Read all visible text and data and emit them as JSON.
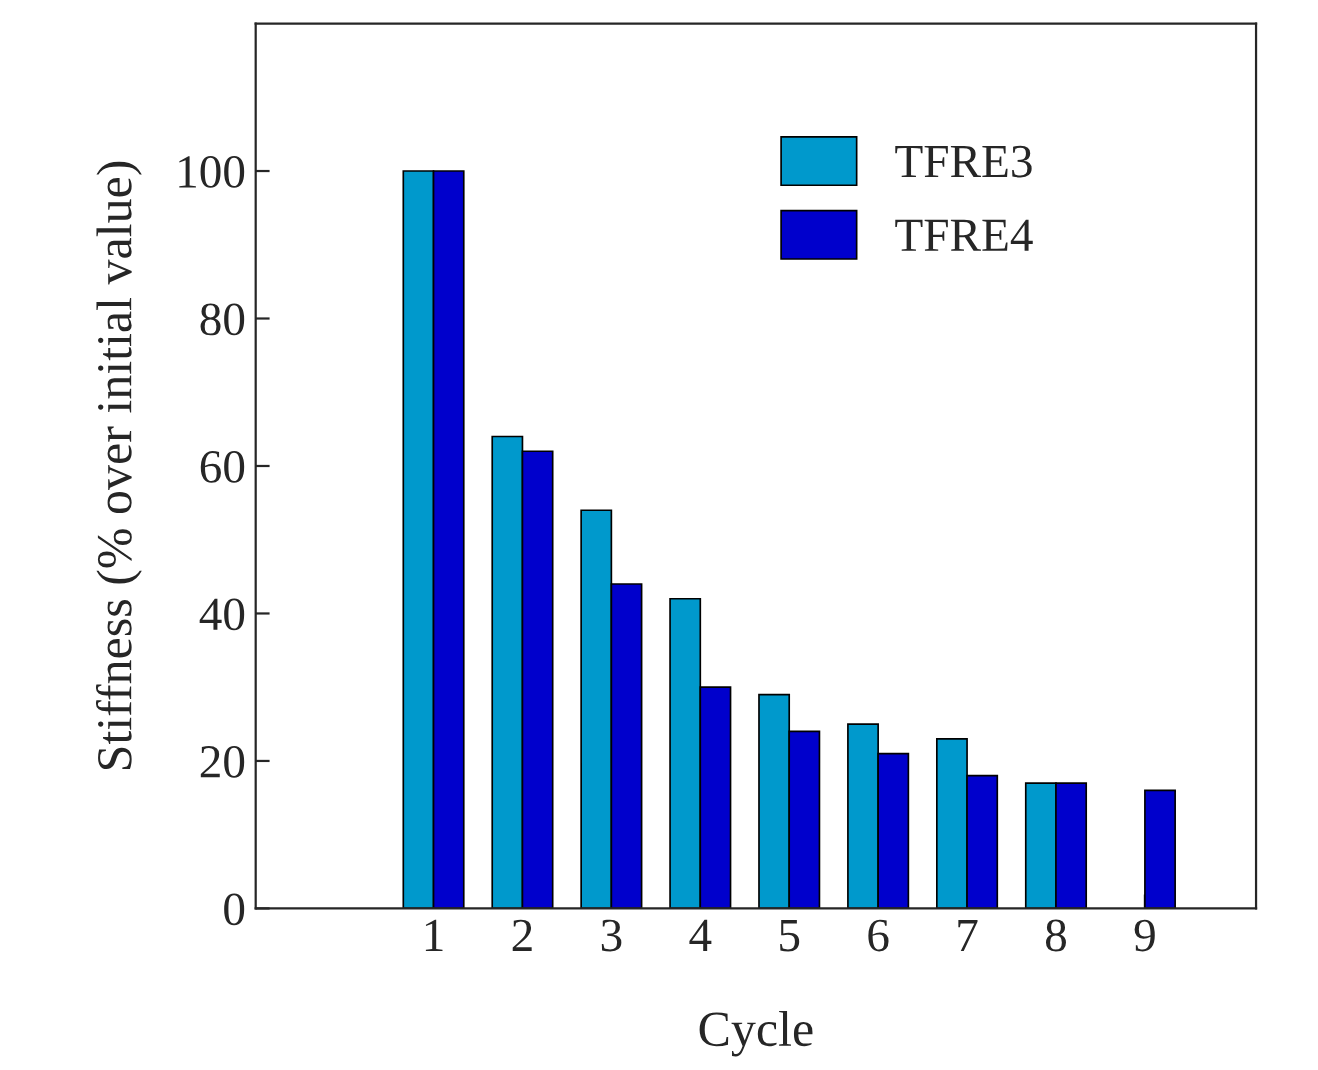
{
  "chart_data": {
    "type": "bar",
    "xlabel": "Cycle",
    "ylabel": "Stiffness (% over initial value)",
    "x": [
      1,
      2,
      3,
      4,
      5,
      6,
      7,
      8,
      9
    ],
    "series": [
      {
        "name": "TFRE3",
        "color": "#0099cc",
        "values": [
          100,
          64,
          54,
          42,
          29,
          25,
          23,
          17,
          null
        ]
      },
      {
        "name": "TFRE4",
        "color": "#0000cc",
        "values": [
          100,
          62,
          44,
          30,
          24,
          21,
          18,
          17,
          16
        ]
      }
    ],
    "xlim": [
      -1,
      10.25
    ],
    "xticks": [
      1,
      2,
      3,
      4,
      5,
      6,
      7,
      8,
      9
    ],
    "ylim": [
      0,
      120
    ],
    "yticks": [
      0,
      20,
      40,
      60,
      80,
      100
    ],
    "grid": false,
    "legend": "top right"
  }
}
